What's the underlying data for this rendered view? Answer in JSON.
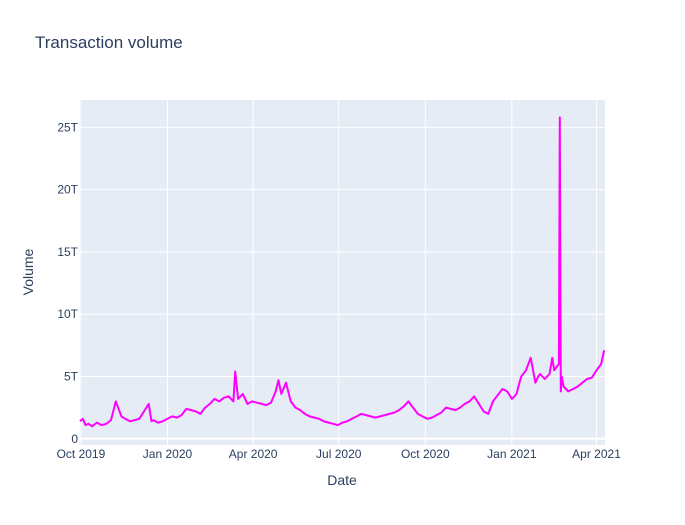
{
  "chart_data": {
    "type": "line",
    "title": "Transaction volume",
    "xlabel": "Date",
    "ylabel": "Volume",
    "xlim": [
      "2019-09-30",
      "2021-04-10"
    ],
    "ylim": [
      -0.5,
      27.2
    ],
    "x_ticks": [
      {
        "date": "2019-10-01",
        "label": "Oct 2019"
      },
      {
        "date": "2020-01-01",
        "label": "Jan 2020"
      },
      {
        "date": "2020-04-01",
        "label": "Apr 2020"
      },
      {
        "date": "2020-07-01",
        "label": "Jul 2020"
      },
      {
        "date": "2020-10-01",
        "label": "Oct 2020"
      },
      {
        "date": "2021-01-01",
        "label": "Jan 2021"
      },
      {
        "date": "2021-04-01",
        "label": "Apr 2021"
      }
    ],
    "y_ticks": [
      {
        "value": 0,
        "label": "0"
      },
      {
        "value": 5,
        "label": "5T"
      },
      {
        "value": 10,
        "label": "10T"
      },
      {
        "value": 15,
        "label": "15T"
      },
      {
        "value": 20,
        "label": "20T"
      },
      {
        "value": 25,
        "label": "25T"
      }
    ],
    "grid": true,
    "series": [
      {
        "color": "#ff00ff",
        "x": [
          "2019-09-30",
          "2019-10-03",
          "2019-10-06",
          "2019-10-09",
          "2019-10-13",
          "2019-10-18",
          "2019-10-23",
          "2019-10-28",
          "2019-11-02",
          "2019-11-07",
          "2019-11-12",
          "2019-11-13",
          "2019-11-17",
          "2019-11-22",
          "2019-11-27",
          "2019-12-02",
          "2019-12-07",
          "2019-12-12",
          "2019-12-15",
          "2019-12-17",
          "2019-12-22",
          "2019-12-27",
          "2020-01-01",
          "2020-01-06",
          "2020-01-11",
          "2020-01-16",
          "2020-01-21",
          "2020-01-26",
          "2020-01-31",
          "2020-02-05",
          "2020-02-10",
          "2020-02-15",
          "2020-02-20",
          "2020-02-25",
          "2020-03-01",
          "2020-03-06",
          "2020-03-11",
          "2020-03-13",
          "2020-03-16",
          "2020-03-21",
          "2020-03-26",
          "2020-03-31",
          "2020-04-05",
          "2020-04-10",
          "2020-04-15",
          "2020-04-20",
          "2020-04-25",
          "2020-04-28",
          "2020-05-01",
          "2020-05-06",
          "2020-05-11",
          "2020-05-16",
          "2020-05-21",
          "2020-05-26",
          "2020-05-31",
          "2020-06-05",
          "2020-06-10",
          "2020-06-15",
          "2020-06-20",
          "2020-06-25",
          "2020-06-30",
          "2020-07-05",
          "2020-07-10",
          "2020-07-15",
          "2020-07-20",
          "2020-07-25",
          "2020-07-30",
          "2020-08-04",
          "2020-08-09",
          "2020-08-14",
          "2020-08-19",
          "2020-08-24",
          "2020-08-29",
          "2020-09-03",
          "2020-09-08",
          "2020-09-13",
          "2020-09-18",
          "2020-09-23",
          "2020-09-28",
          "2020-10-03",
          "2020-10-08",
          "2020-10-13",
          "2020-10-18",
          "2020-10-23",
          "2020-10-28",
          "2020-11-02",
          "2020-11-07",
          "2020-11-12",
          "2020-11-17",
          "2020-11-22",
          "2020-11-27",
          "2020-12-02",
          "2020-12-07",
          "2020-12-12",
          "2020-12-17",
          "2020-12-22",
          "2020-12-27",
          "2021-01-01",
          "2021-01-06",
          "2021-01-09",
          "2021-01-11",
          "2021-01-16",
          "2021-01-21",
          "2021-01-26",
          "2021-01-29",
          "2021-01-31",
          "2021-02-05",
          "2021-02-10",
          "2021-02-13",
          "2021-02-15",
          "2021-02-20",
          "2021-02-21",
          "2021-02-22",
          "2021-02-23",
          "2021-02-25",
          "2021-03-02",
          "2021-03-07",
          "2021-03-12",
          "2021-03-17",
          "2021-03-22",
          "2021-03-27",
          "2021-04-01",
          "2021-04-06",
          "2021-04-09"
        ],
        "values": [
          1.4,
          1.6,
          1.1,
          1.2,
          1.0,
          1.3,
          1.1,
          1.2,
          1.5,
          3.0,
          2.0,
          1.8,
          1.6,
          1.4,
          1.5,
          1.6,
          2.2,
          2.8,
          1.4,
          1.5,
          1.3,
          1.4,
          1.6,
          1.8,
          1.7,
          1.9,
          2.4,
          2.3,
          2.2,
          2.0,
          2.5,
          2.8,
          3.2,
          3.0,
          3.3,
          3.4,
          3.0,
          5.4,
          3.2,
          3.6,
          2.8,
          3.0,
          2.9,
          2.8,
          2.7,
          2.9,
          3.8,
          4.7,
          3.6,
          4.5,
          3.0,
          2.5,
          2.3,
          2.0,
          1.8,
          1.7,
          1.6,
          1.4,
          1.3,
          1.2,
          1.1,
          1.3,
          1.4,
          1.6,
          1.8,
          2.0,
          1.9,
          1.8,
          1.7,
          1.8,
          1.9,
          2.0,
          2.1,
          2.3,
          2.6,
          3.0,
          2.5,
          2.0,
          1.8,
          1.6,
          1.7,
          1.9,
          2.1,
          2.5,
          2.4,
          2.3,
          2.5,
          2.8,
          3.0,
          3.4,
          2.8,
          2.2,
          2.0,
          3.0,
          3.5,
          4.0,
          3.8,
          3.2,
          3.6,
          4.5,
          5.0,
          5.5,
          6.5,
          4.5,
          5.0,
          5.2,
          4.8,
          5.2,
          6.5,
          5.5,
          6.0,
          25.8,
          3.8,
          5.0,
          4.2,
          3.8,
          4.0,
          4.2,
          4.5,
          4.8,
          4.9,
          5.5,
          6.0,
          7.1
        ]
      }
    ]
  }
}
